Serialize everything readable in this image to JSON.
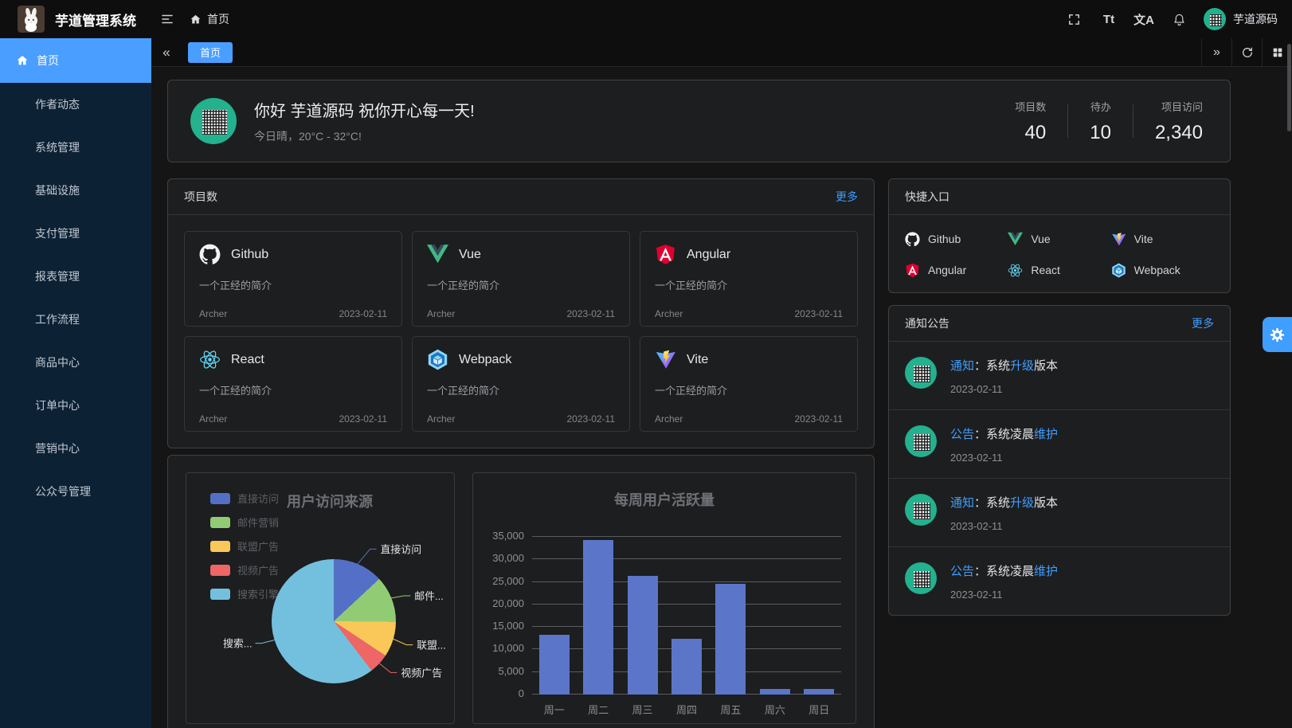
{
  "theme": {
    "accent": "#409eff",
    "sidebar_bg": "#0c2134",
    "card_bg": "#1d1e1f",
    "avatar_green": "#23b18e"
  },
  "header": {
    "app_title": "芋道管理系统",
    "breadcrumb_home": "首页",
    "username": "芋道源码",
    "icons": [
      "fullscreen-icon",
      "font-size-icon",
      "language-icon",
      "bell-icon"
    ],
    "font_size_glyph": "Tt",
    "language_glyph": "文A"
  },
  "sidebar": {
    "active_label": "首页",
    "items": [
      {
        "label": "作者动态",
        "expandable": false
      },
      {
        "label": "系统管理",
        "expandable": true
      },
      {
        "label": "基础设施",
        "expandable": true
      },
      {
        "label": "支付管理",
        "expandable": true
      },
      {
        "label": "报表管理",
        "expandable": true
      },
      {
        "label": "工作流程",
        "expandable": true
      },
      {
        "label": "商品中心",
        "expandable": true
      },
      {
        "label": "订单中心",
        "expandable": true
      },
      {
        "label": "营销中心",
        "expandable": true
      },
      {
        "label": "公众号管理",
        "expandable": true
      }
    ]
  },
  "tabbar": {
    "active_tab": "首页",
    "collapse_glyph": "«",
    "expand_glyph": "»"
  },
  "welcome": {
    "greeting": "你好 芋道源码 祝你开心每一天!",
    "weather": "今日晴，20°C - 32°C!",
    "stats": [
      {
        "label": "项目数",
        "value": "40"
      },
      {
        "label": "待办",
        "value": "10"
      },
      {
        "label": "项目访问",
        "value": "2,340"
      }
    ]
  },
  "projects_panel": {
    "title": "项目数",
    "more_label": "更多",
    "items": [
      {
        "name": "Github",
        "icon": "github",
        "desc": "一个正经的简介",
        "author": "Archer",
        "date": "2023-02-11"
      },
      {
        "name": "Vue",
        "icon": "vue",
        "desc": "一个正经的简介",
        "author": "Archer",
        "date": "2023-02-11"
      },
      {
        "name": "Angular",
        "icon": "angular",
        "desc": "一个正经的简介",
        "author": "Archer",
        "date": "2023-02-11"
      },
      {
        "name": "React",
        "icon": "react",
        "desc": "一个正经的简介",
        "author": "Archer",
        "date": "2023-02-11"
      },
      {
        "name": "Webpack",
        "icon": "webpack",
        "desc": "一个正经的简介",
        "author": "Archer",
        "date": "2023-02-11"
      },
      {
        "name": "Vite",
        "icon": "vite",
        "desc": "一个正经的简介",
        "author": "Archer",
        "date": "2023-02-11"
      }
    ]
  },
  "quick_panel": {
    "title": "快捷入口",
    "links": [
      {
        "label": "Github",
        "icon": "github"
      },
      {
        "label": "Vue",
        "icon": "vue"
      },
      {
        "label": "Vite",
        "icon": "vite"
      },
      {
        "label": "Angular",
        "icon": "angular"
      },
      {
        "label": "React",
        "icon": "react"
      },
      {
        "label": "Webpack",
        "icon": "webpack"
      }
    ]
  },
  "notice_panel": {
    "title": "通知公告",
    "more_label": "更多",
    "items": [
      {
        "segments": [
          {
            "text": "通知",
            "highlight": true
          },
          {
            "text": "：系统",
            "highlight": false
          },
          {
            "text": "升级",
            "highlight": true
          },
          {
            "text": "版本",
            "highlight": false
          }
        ],
        "date": "2023-02-11"
      },
      {
        "segments": [
          {
            "text": "公告",
            "highlight": true
          },
          {
            "text": "：系统凌晨",
            "highlight": false
          },
          {
            "text": "维护",
            "highlight": true
          }
        ],
        "date": "2023-02-11"
      },
      {
        "segments": [
          {
            "text": "通知",
            "highlight": true
          },
          {
            "text": "：系统",
            "highlight": false
          },
          {
            "text": "升级",
            "highlight": true
          },
          {
            "text": "版本",
            "highlight": false
          }
        ],
        "date": "2023-02-11"
      },
      {
        "segments": [
          {
            "text": "公告",
            "highlight": true
          },
          {
            "text": "：系统凌晨",
            "highlight": false
          },
          {
            "text": "维护",
            "highlight": true
          }
        ],
        "date": "2023-02-11"
      }
    ]
  },
  "chart_data": [
    {
      "type": "pie",
      "title": "用户访问来源",
      "legend_position": "top-left",
      "series": [
        {
          "name": "直接访问",
          "value": 335,
          "percent": 13.1,
          "color": "#5470c6",
          "callout": "直接访问"
        },
        {
          "name": "邮件营销",
          "value": 310,
          "percent": 12.1,
          "color": "#91cc75",
          "callout": "邮件..."
        },
        {
          "name": "联盟广告",
          "value": 234,
          "percent": 9.1,
          "color": "#fac858",
          "callout": "联盟..."
        },
        {
          "name": "视频广告",
          "value": 135,
          "percent": 5.3,
          "color": "#ee6666",
          "callout": "视频广告"
        },
        {
          "name": "搜索引擎",
          "value": 1548,
          "percent": 60.4,
          "color": "#73c0de",
          "callout": "搜索..."
        }
      ]
    },
    {
      "type": "bar",
      "title": "每周用户活跃量",
      "categories": [
        "周一",
        "周二",
        "周三",
        "周四",
        "周五",
        "周六",
        "周日"
      ],
      "values": [
        13253,
        34235,
        26321,
        12340,
        24643,
        1322,
        1324
      ],
      "ylim": [
        0,
        35000
      ],
      "ytick_step": 5000,
      "bar_color": "#5b76c9",
      "grid": true,
      "legend_position": "none"
    }
  ]
}
